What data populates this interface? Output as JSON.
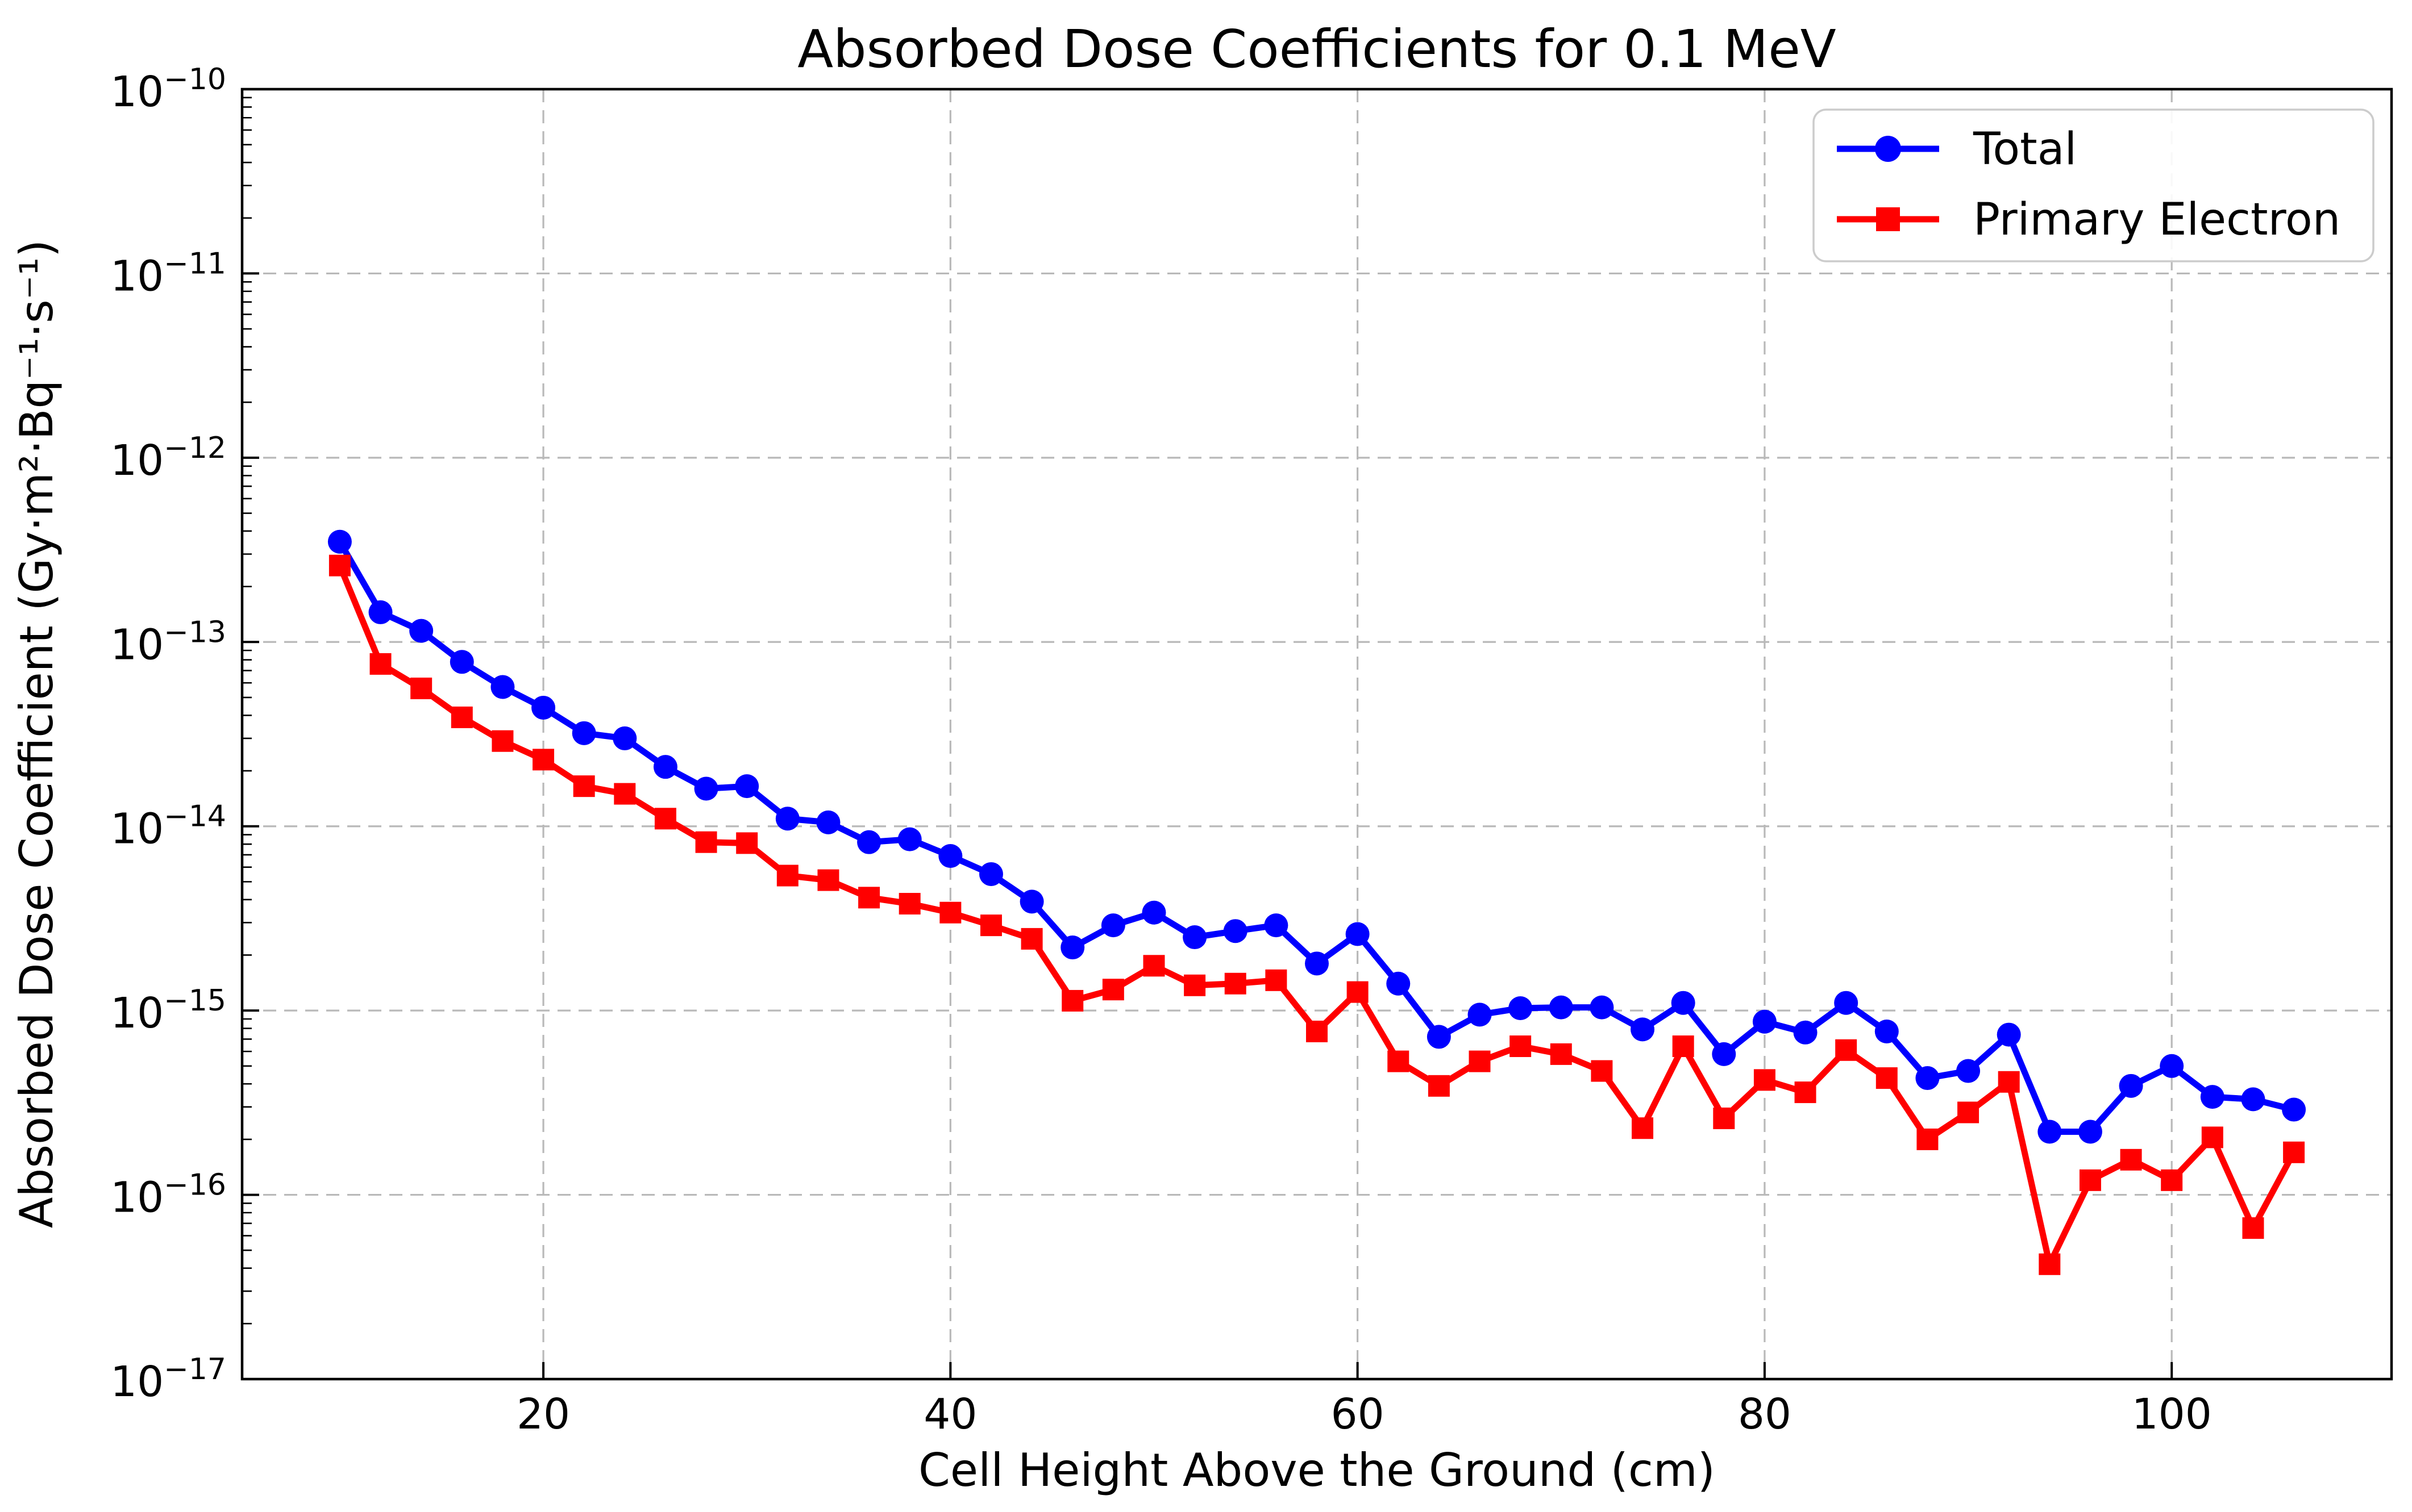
{
  "chart_data": {
    "type": "line",
    "title": "Absorbed Dose Coefficients for 0.1 MeV",
    "xlabel": "Cell Height Above the Ground (cm)",
    "ylabel": "Absorbed Dose Coefficient (Gy·m²·Bq⁻¹·s⁻¹)",
    "x_axis": {
      "scale": "linear",
      "ticks": [
        20,
        40,
        60,
        80,
        100
      ],
      "lim": [
        5.2,
        110.8
      ]
    },
    "y_axis": {
      "scale": "log",
      "tick_exponents": [
        -10,
        -11,
        -12,
        -13,
        -14,
        -15,
        -16,
        -17
      ],
      "lim_exponents": [
        -17,
        -10
      ]
    },
    "grid": {
      "show": true,
      "style": "dashed",
      "color": "#b9b9b9"
    },
    "legend": {
      "position": "upper right"
    },
    "x": [
      10,
      12,
      14,
      16,
      18,
      20,
      22,
      24,
      26,
      28,
      30,
      32,
      34,
      36,
      38,
      40,
      42,
      44,
      46,
      48,
      50,
      52,
      54,
      56,
      58,
      60,
      62,
      64,
      66,
      68,
      70,
      72,
      74,
      76,
      78,
      80,
      82,
      84,
      86,
      88,
      90,
      92,
      94,
      96,
      98,
      100,
      102,
      104,
      106
    ],
    "series": [
      {
        "name": "Total",
        "color": "#0000ff",
        "marker": "circle",
        "values": [
          3.5e-13,
          1.45e-13,
          1.15e-13,
          7.8e-14,
          5.7e-14,
          4.4e-14,
          3.2e-14,
          3e-14,
          2.1e-14,
          1.6e-14,
          1.65e-14,
          1.1e-14,
          1.05e-14,
          8.2e-15,
          8.5e-15,
          6.9e-15,
          5.5e-15,
          3.9e-15,
          2.2e-15,
          2.9e-15,
          3.4e-15,
          2.5e-15,
          2.7e-15,
          2.9e-15,
          1.8e-15,
          2.6e-15,
          1.4e-15,
          7.2e-16,
          9.5e-16,
          1.03e-15,
          1.04e-15,
          1.04e-15,
          7.9e-16,
          1.1e-15,
          5.8e-16,
          8.7e-16,
          7.6e-16,
          1.1e-15,
          7.7e-16,
          4.3e-16,
          4.7e-16,
          7.4e-16,
          2.2e-16,
          2.2e-16,
          3.9e-16,
          5e-16,
          3.4e-16,
          3.3e-16,
          2.9e-16
        ]
      },
      {
        "name": "Primary Electron",
        "color": "#ff0000",
        "marker": "square",
        "values": [
          2.6e-13,
          7.6e-14,
          5.6e-14,
          3.9e-14,
          2.9e-14,
          2.3e-14,
          1.65e-14,
          1.5e-14,
          1.1e-14,
          8.2e-15,
          8.1e-15,
          5.4e-15,
          5.1e-15,
          4.1e-15,
          3.8e-15,
          3.4e-15,
          2.9e-15,
          2.45e-15,
          1.13e-15,
          1.3e-15,
          1.75e-15,
          1.37e-15,
          1.4e-15,
          1.46e-15,
          7.7e-16,
          1.26e-15,
          5.3e-16,
          3.9e-16,
          5.3e-16,
          6.4e-16,
          5.8e-16,
          4.7e-16,
          2.3e-16,
          6.4e-16,
          2.6e-16,
          4.2e-16,
          3.6e-16,
          6.1e-16,
          4.3e-16,
          2e-16,
          2.8e-16,
          4.1e-16,
          4.2e-17,
          1.2e-16,
          1.55e-16,
          1.2e-16,
          2.05e-16,
          6.6e-17,
          1.7e-16
        ]
      }
    ]
  }
}
